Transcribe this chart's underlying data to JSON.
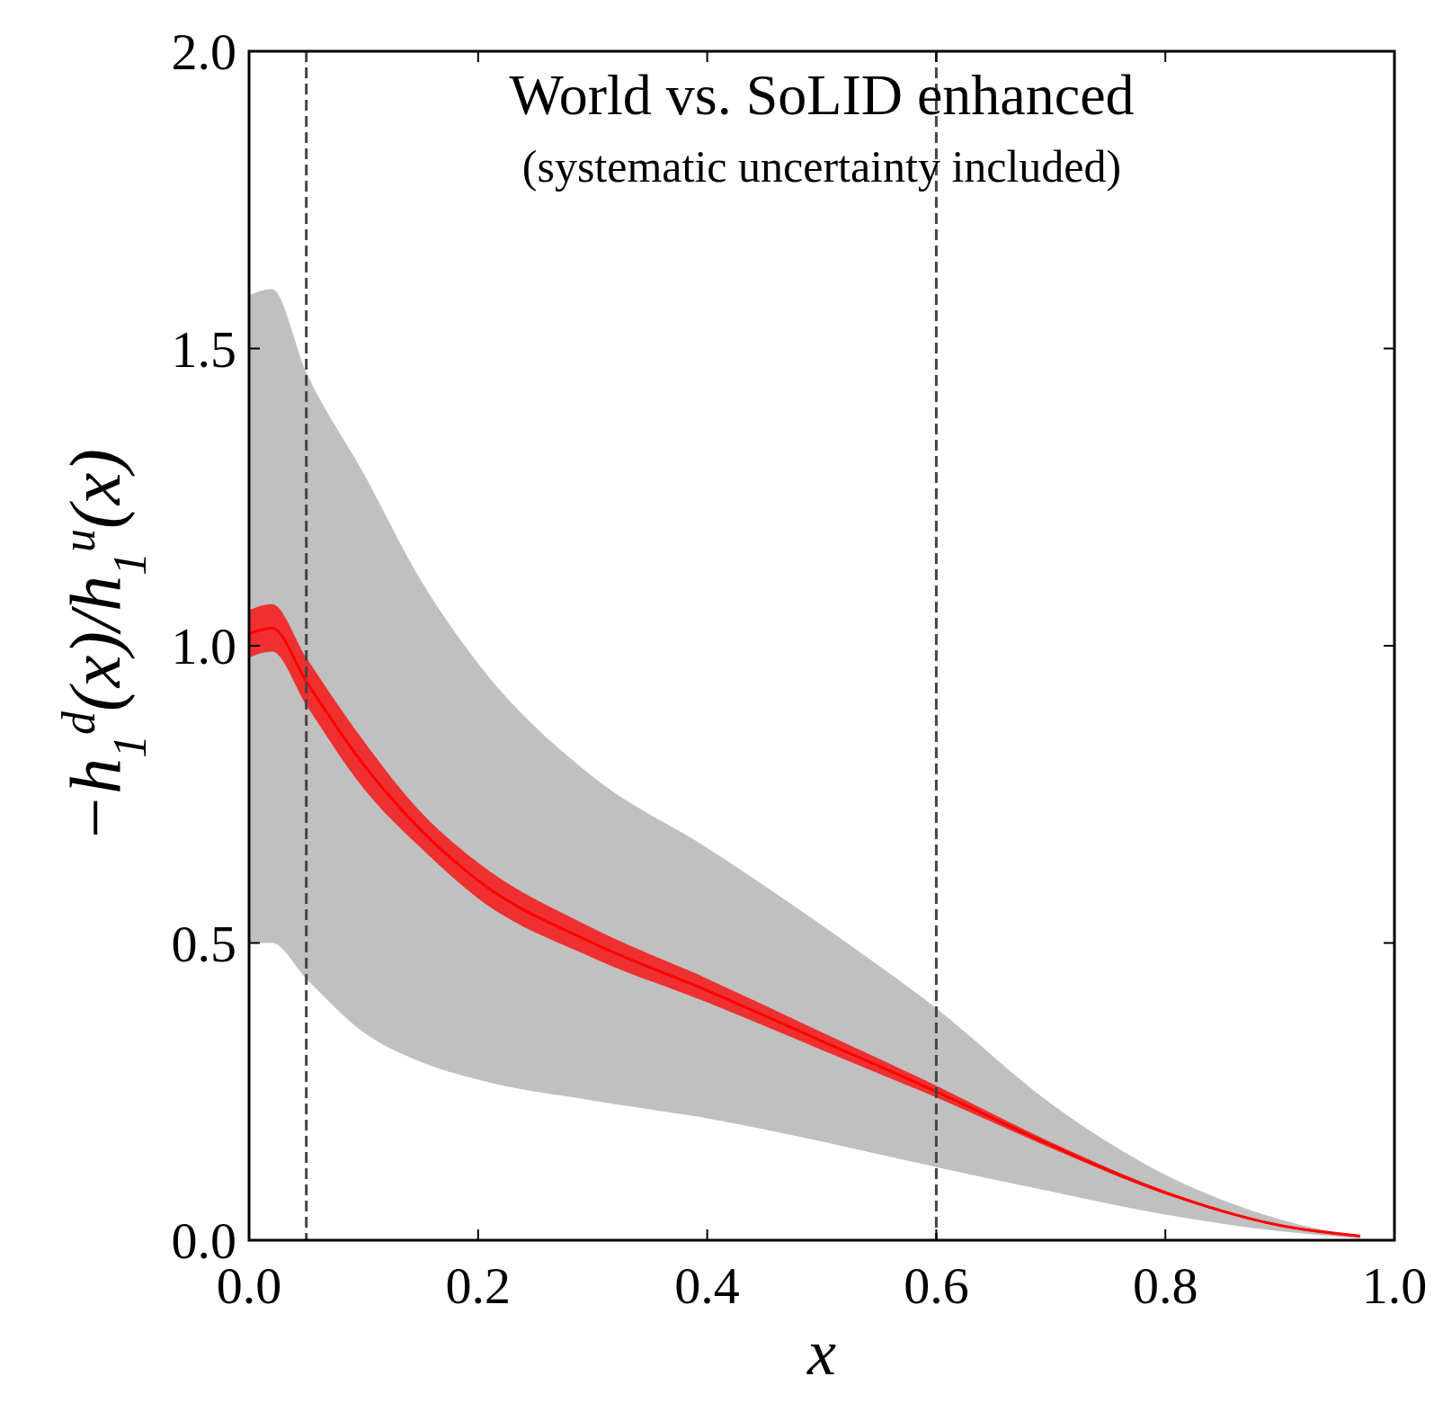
{
  "chart_data": {
    "type": "line",
    "title": "World vs. SoLID enhanced",
    "subtitle": "(systematic uncertainty included)",
    "xlabel": "x",
    "ylabel": "−h$_{1}$$^{d}$(x)/h$_{1}$$^{u}$(x)",
    "xlim": [
      0,
      1
    ],
    "ylim": [
      0,
      2
    ],
    "xticks": [
      {
        "value": 0,
        "label": "0.0"
      },
      0.2,
      0.4,
      0.6,
      0.8,
      {
        "value": 1,
        "label": "1.0"
      }
    ],
    "yticks": [
      {
        "value": 0,
        "label": "0.0"
      },
      0.5,
      {
        "value": 1,
        "label": "1.0"
      },
      1.5,
      {
        "value": 2,
        "label": "2.0"
      }
    ],
    "grid": false,
    "marker": "none",
    "line_style": "solid",
    "series": [
      {
        "color": "#c0c0c0",
        "x": [
          0,
          0.02,
          0.05,
          0.1,
          0.15,
          0.2,
          0.3,
          0.4,
          0.5,
          0.6,
          0.7,
          0.8,
          0.9,
          0.97
        ],
        "values": [
          null,
          null,
          null,
          null,
          null,
          null,
          null,
          null,
          null,
          null,
          null,
          null,
          null,
          null
        ],
        "upper": [
          1.59,
          1.6,
          1.46,
          1.29,
          1.11,
          0.97,
          0.78,
          0.66,
          0.53,
          0.39,
          0.23,
          0.11,
          0.035,
          0.005
        ],
        "lower": [
          0.5,
          0.5,
          0.44,
          0.35,
          0.3,
          0.27,
          0.235,
          0.205,
          0.166,
          0.123,
          0.082,
          0.043,
          0.015,
          0.003
        ]
      },
      {
        "color": "#ff0000",
        "x": [
          0,
          0.02,
          0.05,
          0.1,
          0.15,
          0.2,
          0.3,
          0.4,
          0.5,
          0.6,
          0.7,
          0.8,
          0.9,
          0.97
        ],
        "values": [
          1.02,
          1.03,
          0.94,
          0.8,
          0.69,
          0.605,
          0.5,
          0.42,
          0.335,
          0.25,
          0.16,
          0.08,
          0.025,
          0.007
        ],
        "upper": [
          1.06,
          1.07,
          0.98,
          0.84,
          0.72,
          0.635,
          0.525,
          0.44,
          0.35,
          0.26,
          0.165,
          0.083,
          0.027,
          0.009
        ],
        "lower": [
          0.98,
          0.99,
          0.9,
          0.76,
          0.66,
          0.575,
          0.475,
          0.4,
          0.32,
          0.24,
          0.155,
          0.077,
          0.023,
          0.005
        ]
      }
    ],
    "ref_lines": [
      {
        "axis": "x",
        "value": 0.05,
        "line_style": "dashed",
        "color": "#444444"
      },
      {
        "axis": "x",
        "value": 0.6,
        "line_style": "dashed",
        "color": "#444444"
      }
    ]
  }
}
